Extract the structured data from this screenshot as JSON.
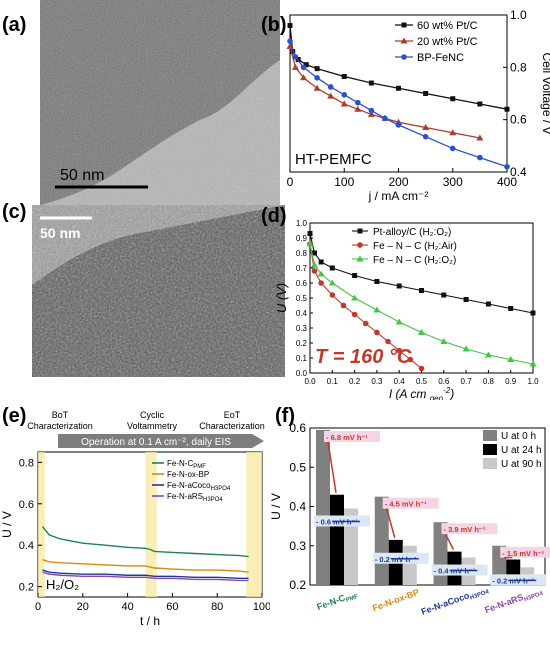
{
  "panels": {
    "a": {
      "label": "(a)",
      "scalebar": "50 nm"
    },
    "b": {
      "label": "(b)"
    },
    "c": {
      "label": "(c)",
      "scalebar": "50 nm"
    },
    "d": {
      "label": "(d)"
    },
    "e": {
      "label": "(e)"
    },
    "f": {
      "label": "(f)"
    }
  },
  "chart_data": [
    {
      "id": "b",
      "type": "line",
      "annotation": "HT-PEMFC",
      "xlabel": "j / mA cm⁻²",
      "ylabel": "Cell Voltage / V",
      "xlim": [
        0,
        400
      ],
      "ylim": [
        0.4,
        1.0
      ],
      "xticks": [
        0,
        100,
        200,
        300,
        400
      ],
      "yticks": [
        0.4,
        0.6,
        0.8,
        1.0
      ],
      "legend_position": "top-right",
      "series": [
        {
          "name": "60 wt% Pt/C",
          "color": "#111111",
          "marker": "square",
          "x": [
            0,
            5,
            15,
            30,
            50,
            100,
            150,
            200,
            250,
            300,
            350,
            400
          ],
          "y": [
            0.96,
            0.86,
            0.83,
            0.81,
            0.795,
            0.765,
            0.74,
            0.72,
            0.7,
            0.68,
            0.66,
            0.64
          ]
        },
        {
          "name": "20 wt% Pt/C",
          "color": "#b03a2e",
          "marker": "triangle",
          "x": [
            0,
            10,
            25,
            50,
            75,
            100,
            125,
            150,
            175,
            200,
            250,
            300,
            350
          ],
          "y": [
            0.88,
            0.8,
            0.76,
            0.72,
            0.69,
            0.66,
            0.64,
            0.62,
            0.605,
            0.59,
            0.57,
            0.55,
            0.53
          ]
        },
        {
          "name": "BP-FeNC",
          "color": "#2c4fd1",
          "marker": "circle",
          "x": [
            0,
            10,
            25,
            50,
            75,
            100,
            125,
            150,
            175,
            200,
            250,
            300,
            350,
            400
          ],
          "y": [
            0.9,
            0.84,
            0.8,
            0.76,
            0.725,
            0.695,
            0.665,
            0.635,
            0.605,
            0.58,
            0.535,
            0.49,
            0.455,
            0.42
          ]
        }
      ]
    },
    {
      "id": "d",
      "type": "line",
      "annotation": "T = 160 °C",
      "xlabel": "I (A cm",
      "xlabel_sub": "geo",
      "xlabel_sup": "-2",
      "xlabel_end": ")",
      "ylabel": "U (V)",
      "xlim": [
        0,
        1.0
      ],
      "ylim": [
        0,
        1.0
      ],
      "xticks": [
        0.0,
        0.1,
        0.2,
        0.3,
        0.4,
        0.5,
        0.6,
        0.7,
        0.8,
        0.9,
        1.0
      ],
      "yticks": [
        0.0,
        0.1,
        0.2,
        0.3,
        0.4,
        0.5,
        0.6,
        0.7,
        0.8,
        0.9,
        1.0
      ],
      "legend_position": "top-right",
      "series": [
        {
          "name": "Pt-alloy/C (H₂:O₂)",
          "color": "#111111",
          "marker": "square",
          "x": [
            0,
            0.02,
            0.05,
            0.1,
            0.2,
            0.3,
            0.4,
            0.5,
            0.6,
            0.7,
            0.8,
            0.9,
            1.0
          ],
          "y": [
            0.93,
            0.8,
            0.74,
            0.7,
            0.65,
            0.61,
            0.58,
            0.55,
            0.52,
            0.49,
            0.46,
            0.43,
            0.4
          ]
        },
        {
          "name": "Fe – N – C (H₂:Air)",
          "color": "#c0392b",
          "marker": "circle",
          "x": [
            0,
            0.02,
            0.05,
            0.1,
            0.15,
            0.2,
            0.25,
            0.3,
            0.35,
            0.4,
            0.45,
            0.5
          ],
          "y": [
            0.86,
            0.68,
            0.6,
            0.52,
            0.45,
            0.39,
            0.33,
            0.27,
            0.21,
            0.15,
            0.09,
            0.03
          ]
        },
        {
          "name": "Fe – N – C (H₂:O₂)",
          "color": "#44c544",
          "marker": "triangle",
          "x": [
            0,
            0.02,
            0.05,
            0.1,
            0.2,
            0.3,
            0.4,
            0.5,
            0.6,
            0.7,
            0.8,
            0.9,
            1.0
          ],
          "y": [
            0.86,
            0.72,
            0.66,
            0.6,
            0.5,
            0.42,
            0.34,
            0.27,
            0.21,
            0.16,
            0.12,
            0.09,
            0.06
          ]
        }
      ]
    },
    {
      "id": "e",
      "type": "line",
      "banner": "Operation at 0.1 A cm⁻², daily EIS",
      "phase_labels": [
        "BoT Characterization",
        "Cyclic Voltammetry",
        "EoT Characterization"
      ],
      "annotation": "H₂/O₂",
      "xlabel": "t / h",
      "ylabel": "U / V",
      "xlim": [
        0,
        100
      ],
      "ylim": [
        0.15,
        0.85
      ],
      "xticks": [
        0,
        20,
        40,
        60,
        80,
        100
      ],
      "yticks": [
        0.2,
        0.4,
        0.6,
        0.8
      ],
      "legend_position": "top-right",
      "series": [
        {
          "name": "Fe-N-C",
          "name_sub": "PMF",
          "color": "#1e8449",
          "x": [
            2,
            5,
            10,
            20,
            30,
            40,
            48,
            50,
            52,
            60,
            70,
            80,
            90,
            94
          ],
          "y": [
            0.49,
            0.45,
            0.43,
            0.41,
            0.4,
            0.39,
            0.385,
            0.38,
            0.37,
            0.365,
            0.36,
            0.355,
            0.35,
            0.345
          ]
        },
        {
          "name": "Fe-N-ox-BP",
          "name_sub": "",
          "color": "#d68910",
          "x": [
            2,
            5,
            10,
            20,
            30,
            40,
            48,
            52,
            60,
            70,
            80,
            90,
            94
          ],
          "y": [
            0.33,
            0.32,
            0.315,
            0.31,
            0.305,
            0.3,
            0.3,
            0.29,
            0.285,
            0.28,
            0.28,
            0.275,
            0.27
          ]
        },
        {
          "name": "Fe-N-aCoco",
          "name_sub": "H3PO4",
          "color": "#1f3a93",
          "x": [
            2,
            5,
            10,
            20,
            30,
            40,
            48,
            52,
            60,
            70,
            80,
            90,
            94
          ],
          "y": [
            0.28,
            0.27,
            0.265,
            0.26,
            0.26,
            0.255,
            0.255,
            0.25,
            0.25,
            0.245,
            0.245,
            0.24,
            0.24
          ]
        },
        {
          "name": "Fe-N-aRS",
          "name_sub": "H3PO4",
          "color": "#8e44ad",
          "x": [
            2,
            5,
            10,
            20,
            30,
            40,
            48,
            52,
            60,
            70,
            80,
            90,
            94
          ],
          "y": [
            0.27,
            0.26,
            0.255,
            0.25,
            0.25,
            0.245,
            0.245,
            0.24,
            0.24,
            0.235,
            0.235,
            0.23,
            0.23
          ]
        }
      ]
    },
    {
      "id": "f",
      "type": "bar",
      "ylabel": "U / V",
      "ylim": [
        0.2,
        0.6
      ],
      "yticks": [
        0.2,
        0.3,
        0.4,
        0.5,
        0.6
      ],
      "legend_position": "top-right",
      "categories": [
        {
          "name": "Fe-N-C",
          "sub": "PMF",
          "color": "#1e8449"
        },
        {
          "name": "Fe-N-ox-BP",
          "sub": "",
          "color": "#d68910"
        },
        {
          "name": "Fe-N-aCoco",
          "sub": "H3PO4",
          "color": "#1f3a93"
        },
        {
          "name": "Fe-N-aRS",
          "sub": "H3PO4",
          "color": "#8e44ad"
        }
      ],
      "series": [
        {
          "name": "U at 0 h",
          "color": "#808080",
          "values": [
            0.595,
            0.425,
            0.36,
            0.3
          ]
        },
        {
          "name": "U at 24 h",
          "color": "#000000",
          "values": [
            0.43,
            0.315,
            0.285,
            0.265
          ]
        },
        {
          "name": "U at 90 h",
          "color": "#c8c8c8",
          "values": [
            0.395,
            0.3,
            0.27,
            0.245
          ]
        }
      ],
      "rate_labels_red": [
        "- 6.8 mV h⁻¹",
        "- 4.5 mV h⁻¹",
        "- 3.9 mV h⁻¹",
        "- 1.5 mV h⁻¹"
      ],
      "rate_labels_blue": [
        "- 0.6 mV h⁻¹",
        "- 0.2 mV h⁻¹",
        "- 0.4 mV h⁻¹",
        "- 0.2 mV h⁻¹"
      ]
    }
  ]
}
